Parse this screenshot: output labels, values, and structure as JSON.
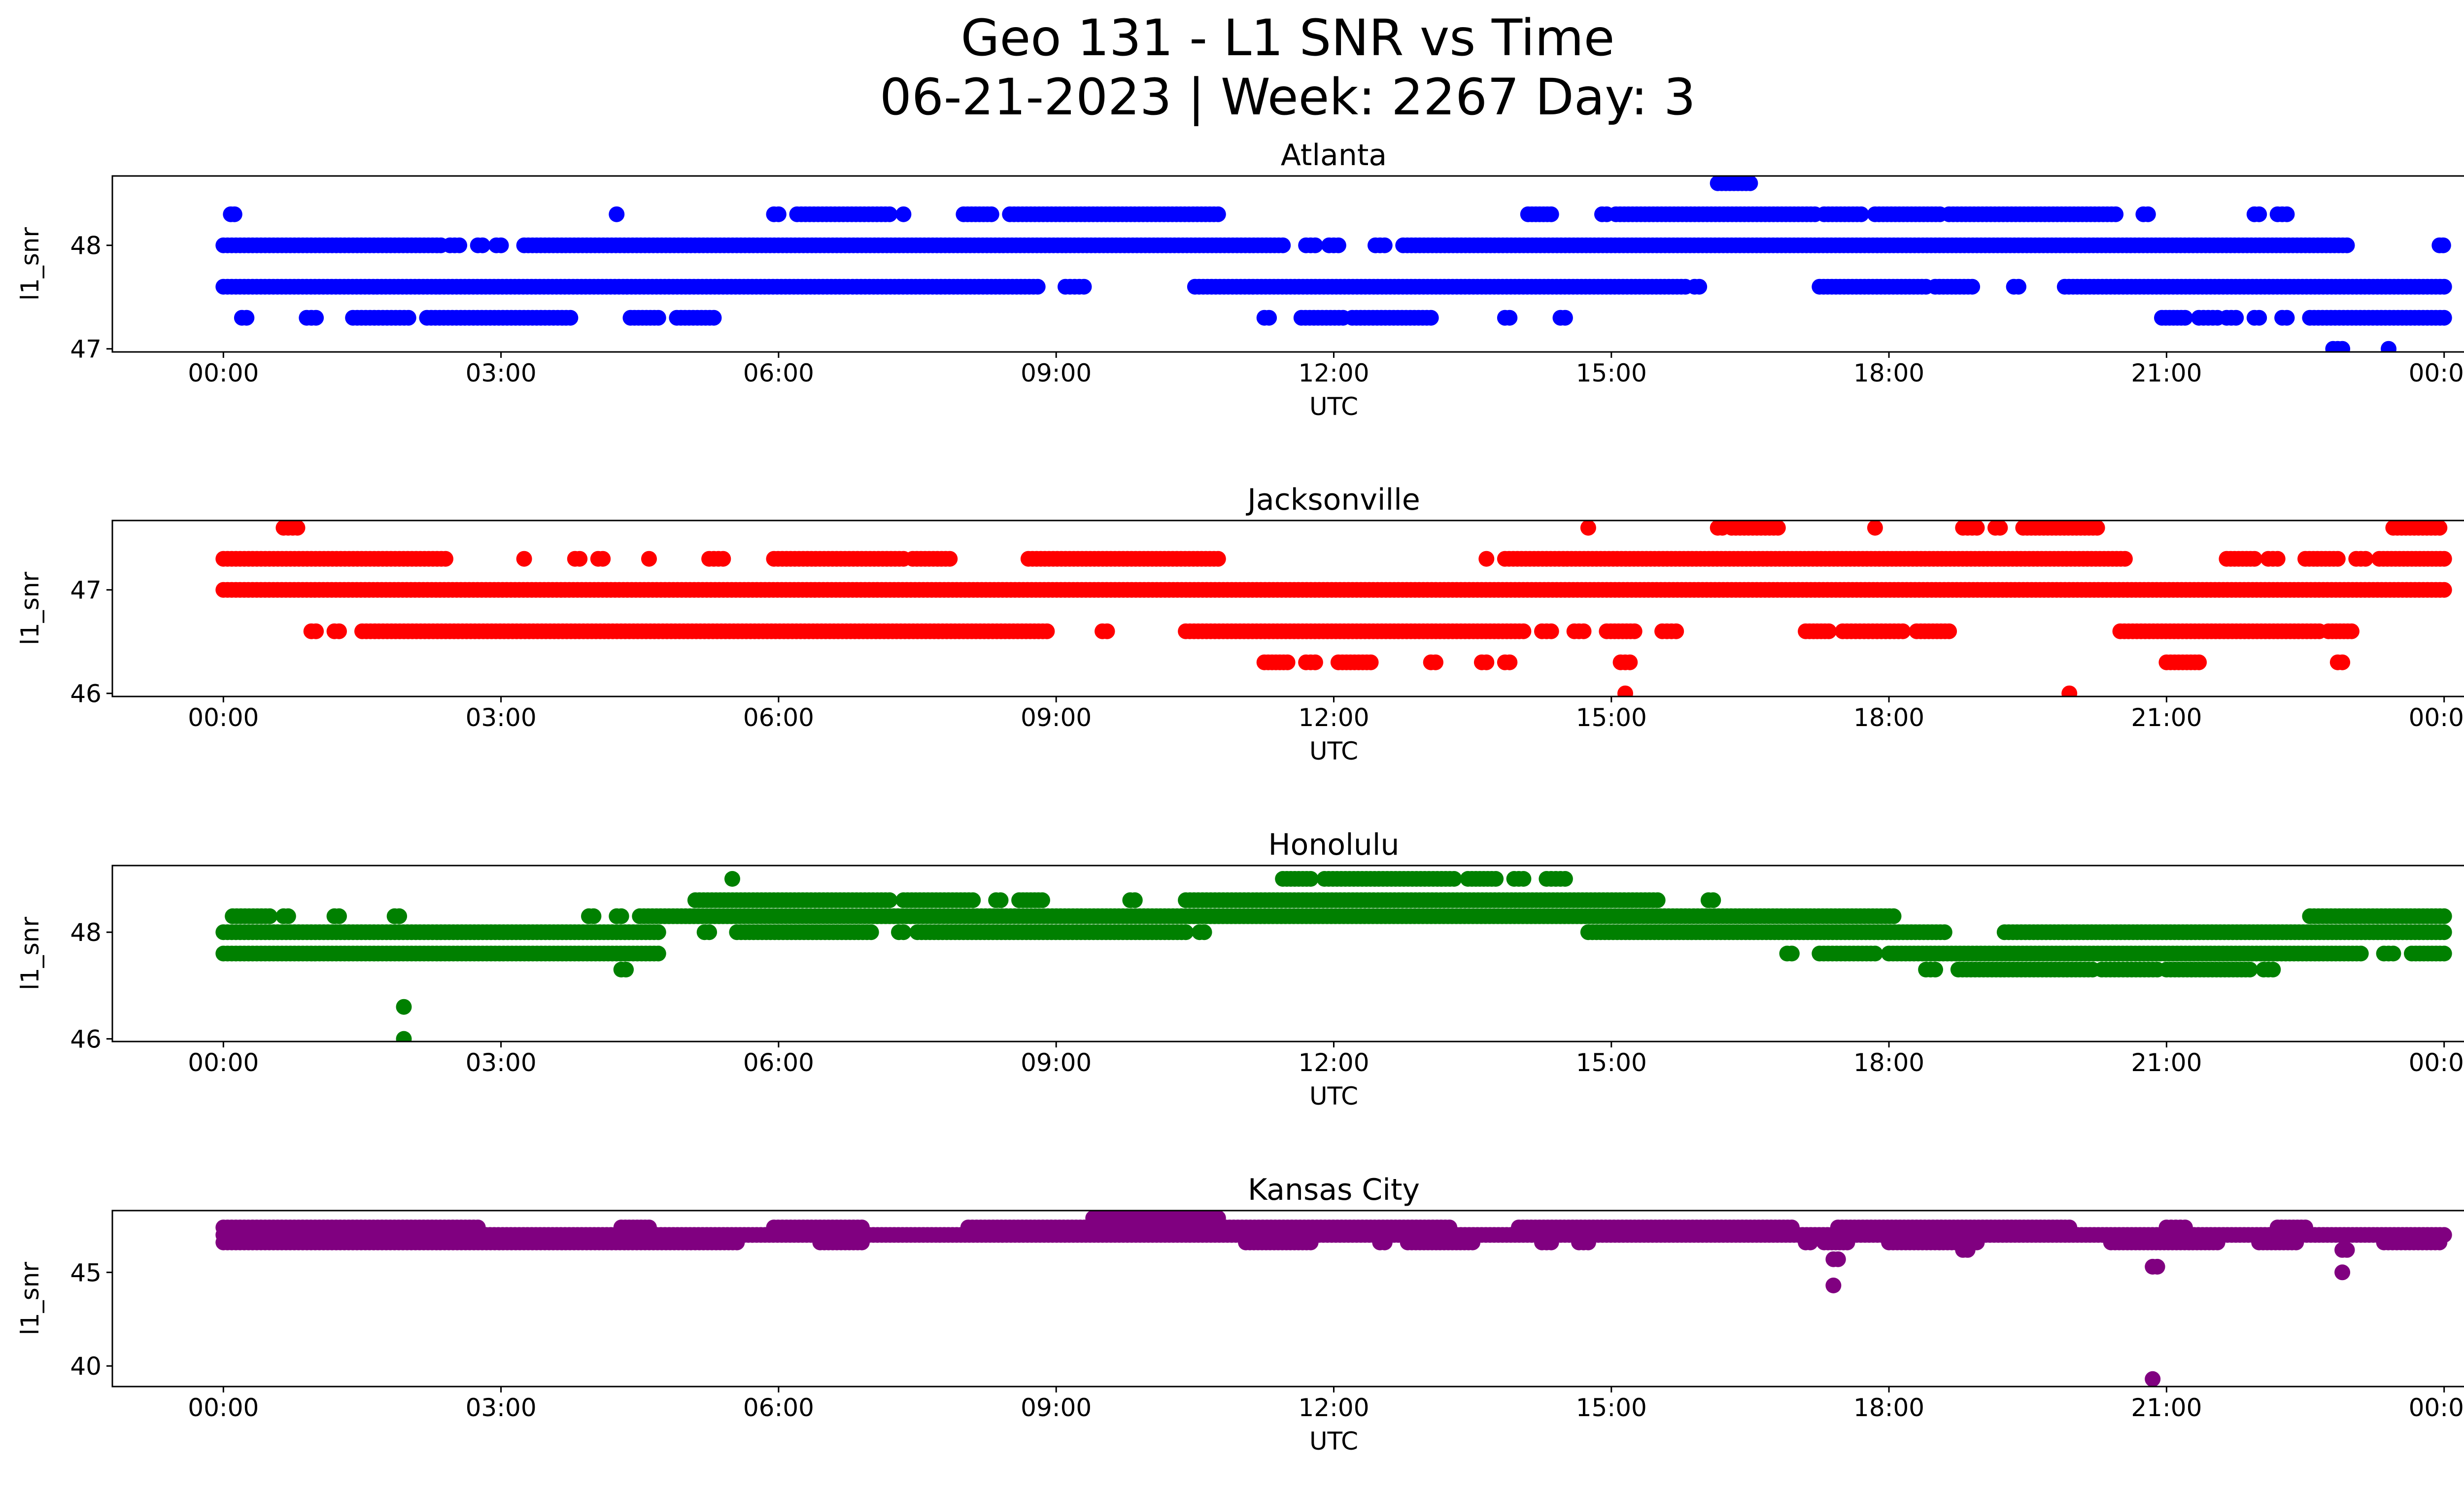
{
  "figure": {
    "title_line1": "Geo 131 - L1 SNR vs Time",
    "title_line2": "06-21-2023 | Week: 2267 Day: 3"
  },
  "chart_data": [
    {
      "type": "scatter",
      "title": "Atlanta",
      "xlabel": "UTC",
      "ylabel": "l1_snr",
      "color": "#0000ff",
      "x_unit": "hours since 00:00 UTC 06-21-2023",
      "xlim": [
        -1.2,
        25.2
      ],
      "ylim": [
        46.97,
        48.67
      ],
      "xticks": [
        "00:00",
        "03:00",
        "06:00",
        "09:00",
        "12:00",
        "15:00",
        "18:00",
        "21:00",
        "00:00"
      ],
      "yticks": [
        "47",
        "48"
      ],
      "ytick_values": [
        47,
        48
      ],
      "levels": [
        {
          "y": 48.6,
          "intervals": [
            [
              16.15,
              16.5
            ]
          ]
        },
        {
          "y": 48.3,
          "intervals": [
            [
              0.08,
              0.12
            ],
            [
              4.25,
              4.25
            ],
            [
              5.95,
              6.0
            ],
            [
              6.2,
              7.2
            ],
            [
              7.35,
              7.35
            ],
            [
              8.0,
              8.3
            ],
            [
              8.5,
              10.75
            ],
            [
              14.1,
              14.35
            ],
            [
              14.9,
              14.95
            ],
            [
              15.05,
              17.2
            ],
            [
              17.3,
              17.7
            ],
            [
              17.85,
              18.55
            ],
            [
              18.65,
              20.45
            ],
            [
              20.75,
              20.8
            ],
            [
              21.95,
              22.0
            ],
            [
              22.2,
              22.3
            ]
          ]
        },
        {
          "y": 48.0,
          "intervals": [
            [
              0.0,
              2.35
            ],
            [
              2.45,
              2.55
            ],
            [
              2.75,
              2.8
            ],
            [
              2.95,
              3.0
            ],
            [
              3.25,
              11.45
            ],
            [
              11.7,
              11.8
            ],
            [
              11.95,
              12.05
            ],
            [
              12.45,
              12.55
            ],
            [
              12.75,
              22.95
            ],
            [
              23.95,
              23.99
            ]
          ]
        },
        {
          "y": 47.6,
          "intervals": [
            [
              0.0,
              6.75
            ],
            [
              6.8,
              8.8
            ],
            [
              9.1,
              9.3
            ],
            [
              10.5,
              15.8
            ],
            [
              15.9,
              15.95
            ],
            [
              17.25,
              18.4
            ],
            [
              18.5,
              18.9
            ],
            [
              19.35,
              19.4
            ],
            [
              19.9,
              24.0
            ]
          ]
        },
        {
          "y": 47.3,
          "intervals": [
            [
              0.2,
              0.25
            ],
            [
              0.9,
              1.0
            ],
            [
              1.4,
              2.0
            ],
            [
              2.2,
              3.75
            ],
            [
              4.4,
              4.7
            ],
            [
              4.9,
              5.3
            ],
            [
              11.25,
              11.3
            ],
            [
              11.65,
              12.1
            ],
            [
              12.2,
              13.05
            ],
            [
              13.85,
              13.9
            ],
            [
              14.45,
              14.5
            ],
            [
              20.95,
              21.2
            ],
            [
              21.35,
              21.55
            ],
            [
              21.65,
              21.75
            ],
            [
              21.95,
              22.0
            ],
            [
              22.25,
              22.3
            ],
            [
              22.55,
              24.0
            ]
          ]
        },
        {
          "y": 47.0,
          "intervals": [
            [
              22.8,
              22.9
            ],
            [
              23.4,
              23.4
            ]
          ]
        }
      ]
    },
    {
      "type": "scatter",
      "title": "Jacksonville",
      "xlabel": "UTC",
      "ylabel": "l1_snr",
      "color": "#ff0000",
      "x_unit": "hours since 00:00 UTC 06-21-2023",
      "xlim": [
        -1.2,
        25.2
      ],
      "ylim": [
        45.97,
        47.67
      ],
      "xticks": [
        "00:00",
        "03:00",
        "06:00",
        "09:00",
        "12:00",
        "15:00",
        "18:00",
        "21:00",
        "00:00"
      ],
      "yticks": [
        "46",
        "47"
      ],
      "ytick_values": [
        46,
        47
      ],
      "levels": [
        {
          "y": 47.6,
          "intervals": [
            [
              0.65,
              0.8
            ],
            [
              14.75,
              14.75
            ],
            [
              16.15,
              16.2
            ],
            [
              16.3,
              16.8
            ],
            [
              17.85,
              17.85
            ],
            [
              18.8,
              18.95
            ],
            [
              19.15,
              19.2
            ],
            [
              19.45,
              20.25
            ],
            [
              23.45,
              23.95
            ]
          ]
        },
        {
          "y": 47.3,
          "intervals": [
            [
              0.0,
              2.4
            ],
            [
              3.25,
              3.25
            ],
            [
              3.8,
              3.85
            ],
            [
              4.05,
              4.1
            ],
            [
              4.6,
              4.6
            ],
            [
              5.25,
              5.4
            ],
            [
              5.95,
              7.35
            ],
            [
              7.45,
              7.85
            ],
            [
              8.7,
              10.75
            ],
            [
              13.65,
              13.65
            ],
            [
              13.85,
              20.55
            ],
            [
              21.65,
              21.95
            ],
            [
              22.1,
              22.2
            ],
            [
              22.5,
              22.85
            ],
            [
              23.05,
              23.15
            ],
            [
              23.3,
              24.0
            ]
          ]
        },
        {
          "y": 47.0,
          "intervals": [
            [
              0.0,
              24.0
            ]
          ]
        },
        {
          "y": 46.6,
          "intervals": [
            [
              0.95,
              1.0
            ],
            [
              1.2,
              1.25
            ],
            [
              1.5,
              8.9
            ],
            [
              9.5,
              9.55
            ],
            [
              10.4,
              14.05
            ],
            [
              14.25,
              14.35
            ],
            [
              14.6,
              14.7
            ],
            [
              14.95,
              15.25
            ],
            [
              15.55,
              15.7
            ],
            [
              17.1,
              17.35
            ],
            [
              17.5,
              18.15
            ],
            [
              18.3,
              18.65
            ],
            [
              20.5,
              22.65
            ],
            [
              22.75,
              23.0
            ]
          ]
        },
        {
          "y": 46.3,
          "intervals": [
            [
              11.25,
              11.5
            ],
            [
              11.7,
              11.8
            ],
            [
              12.05,
              12.4
            ],
            [
              13.05,
              13.1
            ],
            [
              13.6,
              13.65
            ],
            [
              13.85,
              13.9
            ],
            [
              15.1,
              15.2
            ],
            [
              21.0,
              21.35
            ],
            [
              22.85,
              22.9
            ]
          ]
        },
        {
          "y": 46.0,
          "intervals": [
            [
              15.15,
              15.15
            ],
            [
              19.95,
              19.95
            ]
          ]
        }
      ]
    },
    {
      "type": "scatter",
      "title": "Honolulu",
      "xlabel": "UTC",
      "ylabel": "l1_snr",
      "color": "#008000",
      "x_unit": "hours since 00:00 UTC 06-21-2023",
      "xlim": [
        -1.2,
        25.2
      ],
      "ylim": [
        45.95,
        49.25
      ],
      "xticks": [
        "00:00",
        "03:00",
        "06:00",
        "09:00",
        "12:00",
        "15:00",
        "18:00",
        "21:00",
        "00:00"
      ],
      "yticks": [
        "46",
        "48"
      ],
      "ytick_values": [
        46,
        48
      ],
      "levels": [
        {
          "y": 49.0,
          "intervals": [
            [
              5.5,
              5.5
            ],
            [
              11.45,
              11.75
            ],
            [
              11.9,
              13.3
            ],
            [
              13.45,
              13.75
            ],
            [
              13.95,
              14.05
            ],
            [
              14.3,
              14.5
            ]
          ]
        },
        {
          "y": 48.6,
          "intervals": [
            [
              5.1,
              7.2
            ],
            [
              7.35,
              8.1
            ],
            [
              8.35,
              8.4
            ],
            [
              8.6,
              8.85
            ],
            [
              9.8,
              9.85
            ],
            [
              10.4,
              15.5
            ],
            [
              16.05,
              16.1
            ]
          ]
        },
        {
          "y": 48.3,
          "intervals": [
            [
              0.1,
              0.5
            ],
            [
              0.65,
              0.7
            ],
            [
              1.2,
              1.25
            ],
            [
              1.85,
              1.9
            ],
            [
              3.95,
              4.0
            ],
            [
              4.25,
              4.3
            ],
            [
              4.5,
              18.05
            ],
            [
              22.55,
              24.0
            ]
          ]
        },
        {
          "y": 48.0,
          "intervals": [
            [
              0.0,
              4.7
            ],
            [
              5.2,
              5.25
            ],
            [
              5.55,
              7.0
            ],
            [
              7.3,
              7.35
            ],
            [
              7.5,
              10.4
            ],
            [
              10.55,
              10.6
            ],
            [
              14.75,
              18.6
            ],
            [
              19.25,
              24.0
            ]
          ]
        },
        {
          "y": 47.6,
          "intervals": [
            [
              0.0,
              4.7
            ],
            [
              16.9,
              16.95
            ],
            [
              17.25,
              17.85
            ],
            [
              18.0,
              23.1
            ],
            [
              23.35,
              23.45
            ],
            [
              23.65,
              24.0
            ]
          ]
        },
        {
          "y": 47.3,
          "intervals": [
            [
              4.3,
              4.35
            ],
            [
              18.4,
              18.5
            ],
            [
              18.75,
              20.2
            ],
            [
              20.3,
              20.9
            ],
            [
              21.0,
              21.9
            ],
            [
              22.05,
              22.15
            ]
          ]
        },
        {
          "y": 46.6,
          "intervals": [
            [
              1.95,
              1.95
            ]
          ]
        },
        {
          "y": 46.0,
          "intervals": [
            [
              1.95,
              1.95
            ]
          ]
        }
      ]
    },
    {
      "type": "scatter",
      "title": "Kansas City",
      "xlabel": "UTC",
      "ylabel": "l1_snr",
      "color": "#800080",
      "x_unit": "hours since 00:00 UTC 06-21-2023",
      "xlim": [
        -1.2,
        25.2
      ],
      "ylim": [
        38.9,
        48.3
      ],
      "xticks": [
        "00:00",
        "03:00",
        "06:00",
        "09:00",
        "12:00",
        "15:00",
        "18:00",
        "21:00",
        "00:00"
      ],
      "yticks": [
        "40",
        "45"
      ],
      "ytick_values": [
        40,
        45
      ],
      "levels": [
        {
          "y": 47.9,
          "intervals": [
            [
              9.4,
              10.75
            ]
          ]
        },
        {
          "y": 47.4,
          "intervals": [
            [
              0.0,
              2.75
            ],
            [
              4.3,
              4.6
            ],
            [
              5.95,
              6.9
            ],
            [
              8.05,
              13.25
            ],
            [
              14.0,
              16.95
            ],
            [
              17.45,
              19.95
            ],
            [
              21.0,
              21.2
            ],
            [
              22.2,
              22.5
            ]
          ]
        },
        {
          "y": 47.0,
          "intervals": [
            [
              0.0,
              24.0
            ]
          ]
        },
        {
          "y": 46.6,
          "intervals": [
            [
              0.0,
              5.55
            ],
            [
              6.45,
              6.9
            ],
            [
              11.05,
              11.75
            ],
            [
              12.5,
              12.55
            ],
            [
              12.8,
              13.5
            ],
            [
              14.25,
              14.35
            ],
            [
              14.65,
              14.75
            ],
            [
              17.1,
              17.15
            ],
            [
              17.3,
              17.55
            ],
            [
              18.0,
              18.95
            ],
            [
              20.4,
              21.55
            ],
            [
              22.0,
              22.4
            ],
            [
              23.35,
              23.95
            ]
          ]
        },
        {
          "y": 46.2,
          "intervals": [
            [
              18.8,
              18.85
            ],
            [
              22.9,
              22.95
            ]
          ]
        },
        {
          "y": 45.7,
          "intervals": [
            [
              17.4,
              17.45
            ]
          ]
        },
        {
          "y": 45.3,
          "intervals": [
            [
              20.85,
              20.9
            ]
          ]
        },
        {
          "y": 45.0,
          "intervals": [
            [
              22.9,
              22.9
            ]
          ]
        },
        {
          "y": 44.3,
          "intervals": [
            [
              17.4,
              17.4
            ]
          ]
        },
        {
          "y": 39.3,
          "intervals": [
            [
              20.85,
              20.85
            ]
          ]
        }
      ]
    }
  ]
}
